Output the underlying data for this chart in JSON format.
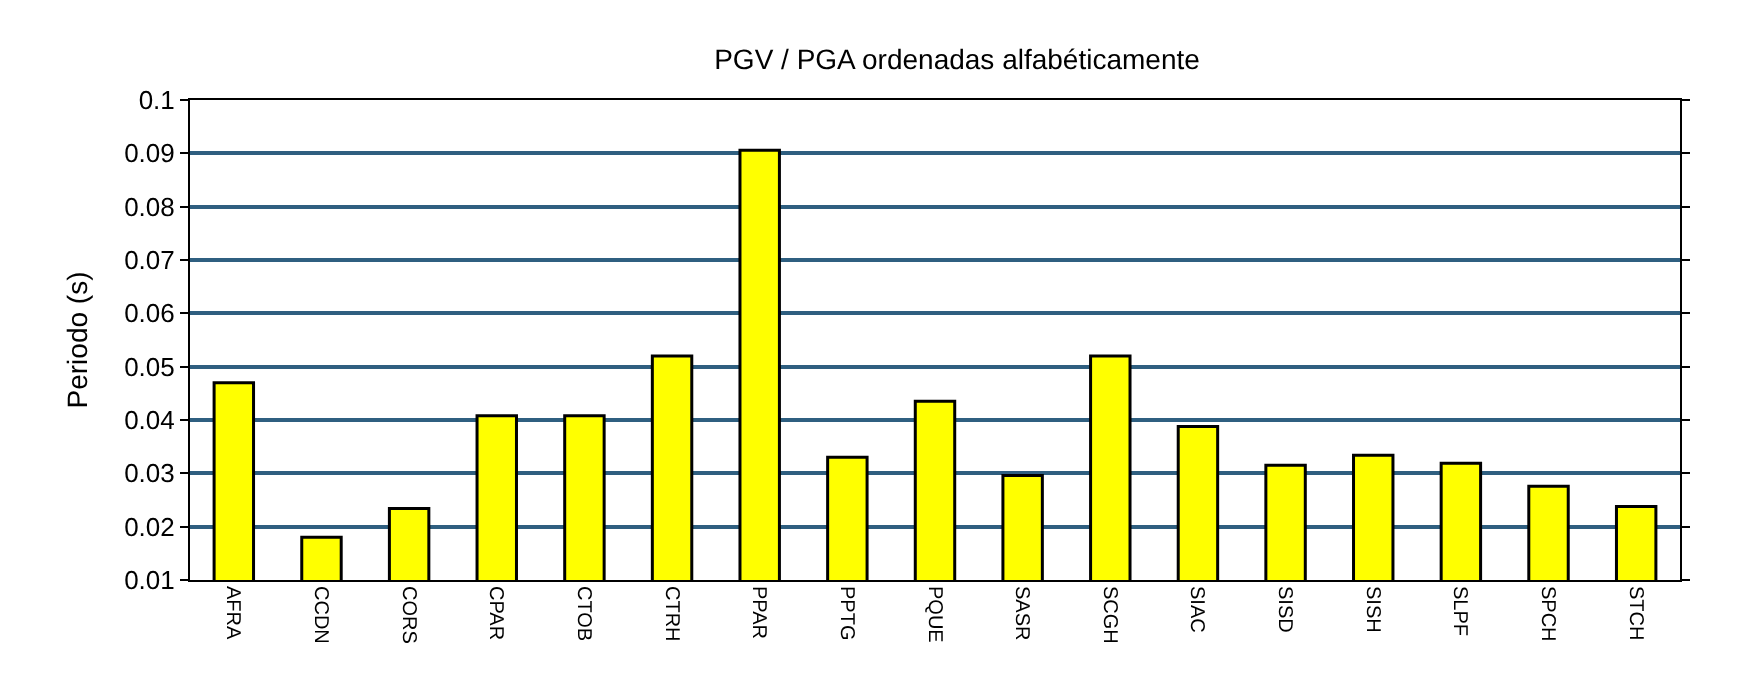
{
  "chart_data": {
    "type": "bar",
    "title": "PGV / PGA ordenadas alfabéticamente",
    "ylabel": "Periodo (s)",
    "categories": [
      "AFRA",
      "CCDN",
      "CORS",
      "CPAR",
      "CTOB",
      "CTRH",
      "PPAR",
      "PPTG",
      "PQUE",
      "SASR",
      "SCGH",
      "SIAC",
      "SISD",
      "SISH",
      "SLPF",
      "SPCH",
      "STCH"
    ],
    "values": [
      0.047,
      0.018,
      0.0234,
      0.0408,
      0.0408,
      0.052,
      0.0906,
      0.033,
      0.0435,
      0.0296,
      0.052,
      0.0388,
      0.0315,
      0.0334,
      0.0319,
      0.0276,
      0.0238
    ],
    "color": "#ffff00",
    "ylim": [
      0.01,
      0.1
    ],
    "yticks": [
      0.01,
      0.02,
      0.03,
      0.04,
      0.05,
      0.06,
      0.07,
      0.08,
      0.09,
      0.1
    ],
    "grid": "y"
  }
}
